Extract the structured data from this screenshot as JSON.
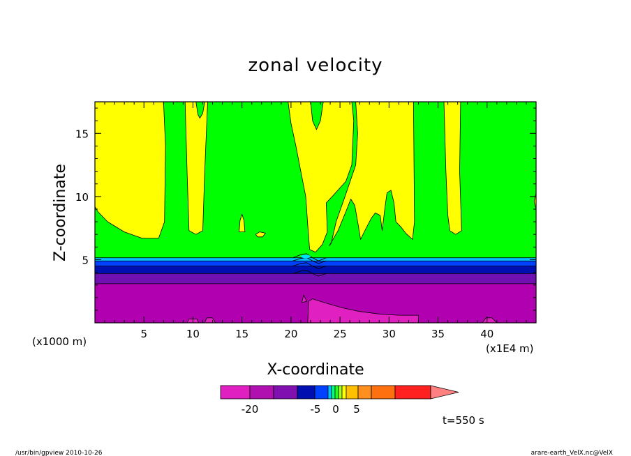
{
  "chart_data": {
    "type": "heatmap",
    "title": "zonal velocity",
    "xlabel": "X-coordinate",
    "ylabel": "Z-coordinate",
    "x_unit_left": "(x1000 m)",
    "x_unit_right": "(x1E4 m)",
    "xlim": [
      0,
      45
    ],
    "ylim": [
      0,
      17.5
    ],
    "x_ticks": [
      5,
      10,
      15,
      20,
      25,
      30,
      35,
      40
    ],
    "y_ticks": [
      5,
      10,
      15
    ],
    "time_label": "t=550 s",
    "footer_left": "/usr/bin/gpview  2010-10-26",
    "footer_right": "arare-earth_VelX.nc@VelX",
    "colorbar": {
      "tick_labels": [
        {
          "label": "-20",
          "value": -20
        },
        {
          "label": "-5",
          "value": -5
        },
        {
          "label": "0",
          "value": 0
        },
        {
          "label": "5",
          "value": 5
        }
      ],
      "colors": [
        "#e020c0",
        "#b010b0",
        "#8010b0",
        "#0010b0",
        "#0040ff",
        "#00c0ff",
        "#00ff80",
        "#20ff20",
        "#a0ff20",
        "#ffff00",
        "#ffc000",
        "#ff9020",
        "#ff7010",
        "#ff2020"
      ],
      "extend_color": "#ff8080"
    },
    "bands": [
      {
        "name": "magenta-base",
        "color": "#b000b0",
        "z_from": 0,
        "z_to": 3.1
      },
      {
        "name": "purple",
        "color": "#7010b0",
        "z_from": 3.1,
        "z_to": 3.9
      },
      {
        "name": "dark-blue",
        "color": "#0010b0",
        "z_from": 3.9,
        "z_to": 4.5
      },
      {
        "name": "blue",
        "color": "#0040ff",
        "z_from": 4.5,
        "z_to": 4.9
      },
      {
        "name": "cyan",
        "color": "#00c0ff",
        "z_from": 4.9,
        "z_to": 5.15
      },
      {
        "name": "green-layer",
        "color": "#00ff00",
        "z_from": 5.15,
        "z_to": 17.5
      }
    ],
    "regions": [
      {
        "name": "yellow-left",
        "color": "#ffff00",
        "points": [
          [
            0,
            17.5
          ],
          [
            7,
            17.5
          ],
          [
            7.2,
            14
          ],
          [
            7.1,
            8
          ],
          [
            6.5,
            6.7
          ],
          [
            4.8,
            6.7
          ],
          [
            3,
            7.2
          ],
          [
            1.3,
            8
          ],
          [
            0.3,
            8.8
          ],
          [
            0,
            9.2
          ]
        ]
      },
      {
        "name": "yellow-col-10",
        "color": "#ffff00",
        "points": [
          [
            9.2,
            17.5
          ],
          [
            10.3,
            17.5
          ],
          [
            10.5,
            16.5
          ],
          [
            10.7,
            16.2
          ],
          [
            11,
            16.6
          ],
          [
            11.2,
            17.5
          ],
          [
            11.5,
            17.5
          ],
          [
            11.2,
            12
          ],
          [
            11,
            7.3
          ],
          [
            10.3,
            7
          ],
          [
            9.6,
            7.3
          ],
          [
            9.4,
            12
          ]
        ]
      },
      {
        "name": "yellow-small-15",
        "color": "#ffff00",
        "points": [
          [
            14.7,
            7.2
          ],
          [
            14.8,
            8.1
          ],
          [
            15,
            8.6
          ],
          [
            15.2,
            8.1
          ],
          [
            15.3,
            7.2
          ]
        ]
      },
      {
        "name": "yellow-small-17",
        "color": "#ffff00",
        "points": [
          [
            16.4,
            7
          ],
          [
            16.8,
            7.2
          ],
          [
            17.4,
            7.1
          ],
          [
            17.1,
            6.8
          ],
          [
            16.6,
            6.8
          ]
        ]
      },
      {
        "name": "yellow-center",
        "color": "#ffff00",
        "points": [
          [
            19.7,
            17.5
          ],
          [
            22,
            17.5
          ],
          [
            22.2,
            16
          ],
          [
            22.6,
            15.3
          ],
          [
            23,
            16
          ],
          [
            23.3,
            17.5
          ],
          [
            26.2,
            17.5
          ],
          [
            26.4,
            16
          ],
          [
            26.2,
            12.5
          ],
          [
            25.6,
            11.2
          ],
          [
            24.2,
            10
          ],
          [
            23.6,
            9.5
          ],
          [
            23.7,
            7.2
          ],
          [
            23.2,
            6.2
          ],
          [
            22.5,
            5.6
          ],
          [
            21.9,
            5.8
          ],
          [
            21.7,
            7.8
          ],
          [
            21.5,
            10
          ],
          [
            21,
            12
          ],
          [
            20.5,
            14
          ],
          [
            20,
            15.8
          ]
        ]
      },
      {
        "name": "yellow-right-mid",
        "color": "#ffff00",
        "points": [
          [
            23.9,
            6.1
          ],
          [
            24.8,
            7.3
          ],
          [
            25.6,
            8.8
          ],
          [
            26.1,
            9.8
          ],
          [
            26.5,
            9.3
          ],
          [
            26.8,
            8
          ],
          [
            27.1,
            6.6
          ],
          [
            27.6,
            7.4
          ],
          [
            28.2,
            8.3
          ],
          [
            28.6,
            8.7
          ],
          [
            29.1,
            8.5
          ],
          [
            29.3,
            7.3
          ],
          [
            29.6,
            9.2
          ],
          [
            29.8,
            10.3
          ],
          [
            30.2,
            10.5
          ],
          [
            30.5,
            9.5
          ],
          [
            30.7,
            8
          ],
          [
            31.2,
            7.6
          ],
          [
            31.7,
            7.1
          ],
          [
            32.4,
            6.6
          ],
          [
            32.6,
            8
          ],
          [
            32.5,
            17.5
          ],
          [
            26.6,
            17.5
          ],
          [
            26.8,
            15
          ],
          [
            26.6,
            12.5
          ],
          [
            25.6,
            10.2
          ],
          [
            24.6,
            8
          ],
          [
            24.1,
            6.3
          ]
        ]
      },
      {
        "name": "yellow-right",
        "color": "#ffff00",
        "points": [
          [
            35.6,
            17.5
          ],
          [
            37.3,
            17.5
          ],
          [
            37.2,
            12
          ],
          [
            37.4,
            7.3
          ],
          [
            36.8,
            7
          ],
          [
            36.2,
            7.3
          ],
          [
            36,
            8.5
          ],
          [
            35.8,
            12
          ]
        ]
      },
      {
        "name": "yellow-far-right",
        "color": "#ffff00",
        "points": [
          [
            45,
            9
          ],
          [
            44.8,
            9.6
          ],
          [
            45,
            10.3
          ]
        ]
      },
      {
        "name": "magenta-bright",
        "color": "#e020c0",
        "points": [
          [
            21.7,
            0
          ],
          [
            21.8,
            1.7
          ],
          [
            22.2,
            1.9
          ],
          [
            23.4,
            1.6
          ],
          [
            25.2,
            1.2
          ],
          [
            27,
            0.9
          ],
          [
            29,
            0.7
          ],
          [
            31,
            0.6
          ],
          [
            33,
            0.6
          ],
          [
            33,
            0
          ]
        ]
      },
      {
        "name": "magenta-spot-10",
        "color": "#e020c0",
        "points": [
          [
            9.4,
            0
          ],
          [
            9.6,
            0.3
          ],
          [
            10.4,
            0.3
          ],
          [
            10.6,
            0
          ]
        ]
      },
      {
        "name": "magenta-spot-12",
        "color": "#e020c0",
        "points": [
          [
            11.2,
            0
          ],
          [
            11.4,
            0.4
          ],
          [
            12,
            0.4
          ],
          [
            12.3,
            0
          ]
        ]
      },
      {
        "name": "magenta-spot-40",
        "color": "#e020c0",
        "points": [
          [
            39.5,
            0
          ],
          [
            39.9,
            0.4
          ],
          [
            40.5,
            0.4
          ],
          [
            41,
            0
          ]
        ]
      },
      {
        "name": "magenta-spot-21",
        "color": "#e020c0",
        "points": [
          [
            21.1,
            1.6
          ],
          [
            21.3,
            2.2
          ],
          [
            21.6,
            1.7
          ]
        ]
      }
    ]
  }
}
